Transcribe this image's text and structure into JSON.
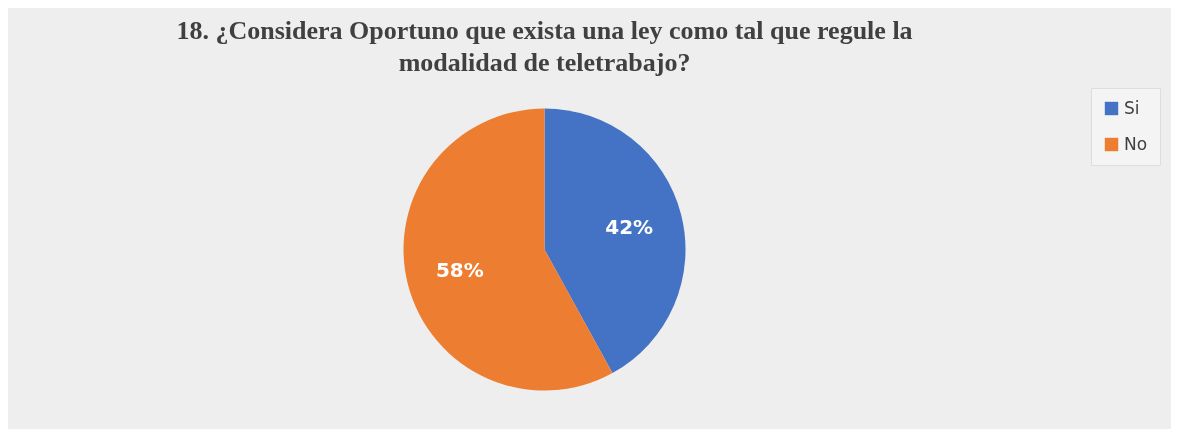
{
  "chart_data": {
    "type": "pie",
    "title": "18. ¿Considera Oportuno que exista una ley como tal que regule la modalidad de teletrabajo?",
    "categories": [
      "Si",
      "No"
    ],
    "values": [
      42,
      58
    ],
    "colors": [
      "#4472c4",
      "#ed7d31"
    ],
    "value_labels": [
      "42%",
      "58%"
    ],
    "legend": "right"
  }
}
